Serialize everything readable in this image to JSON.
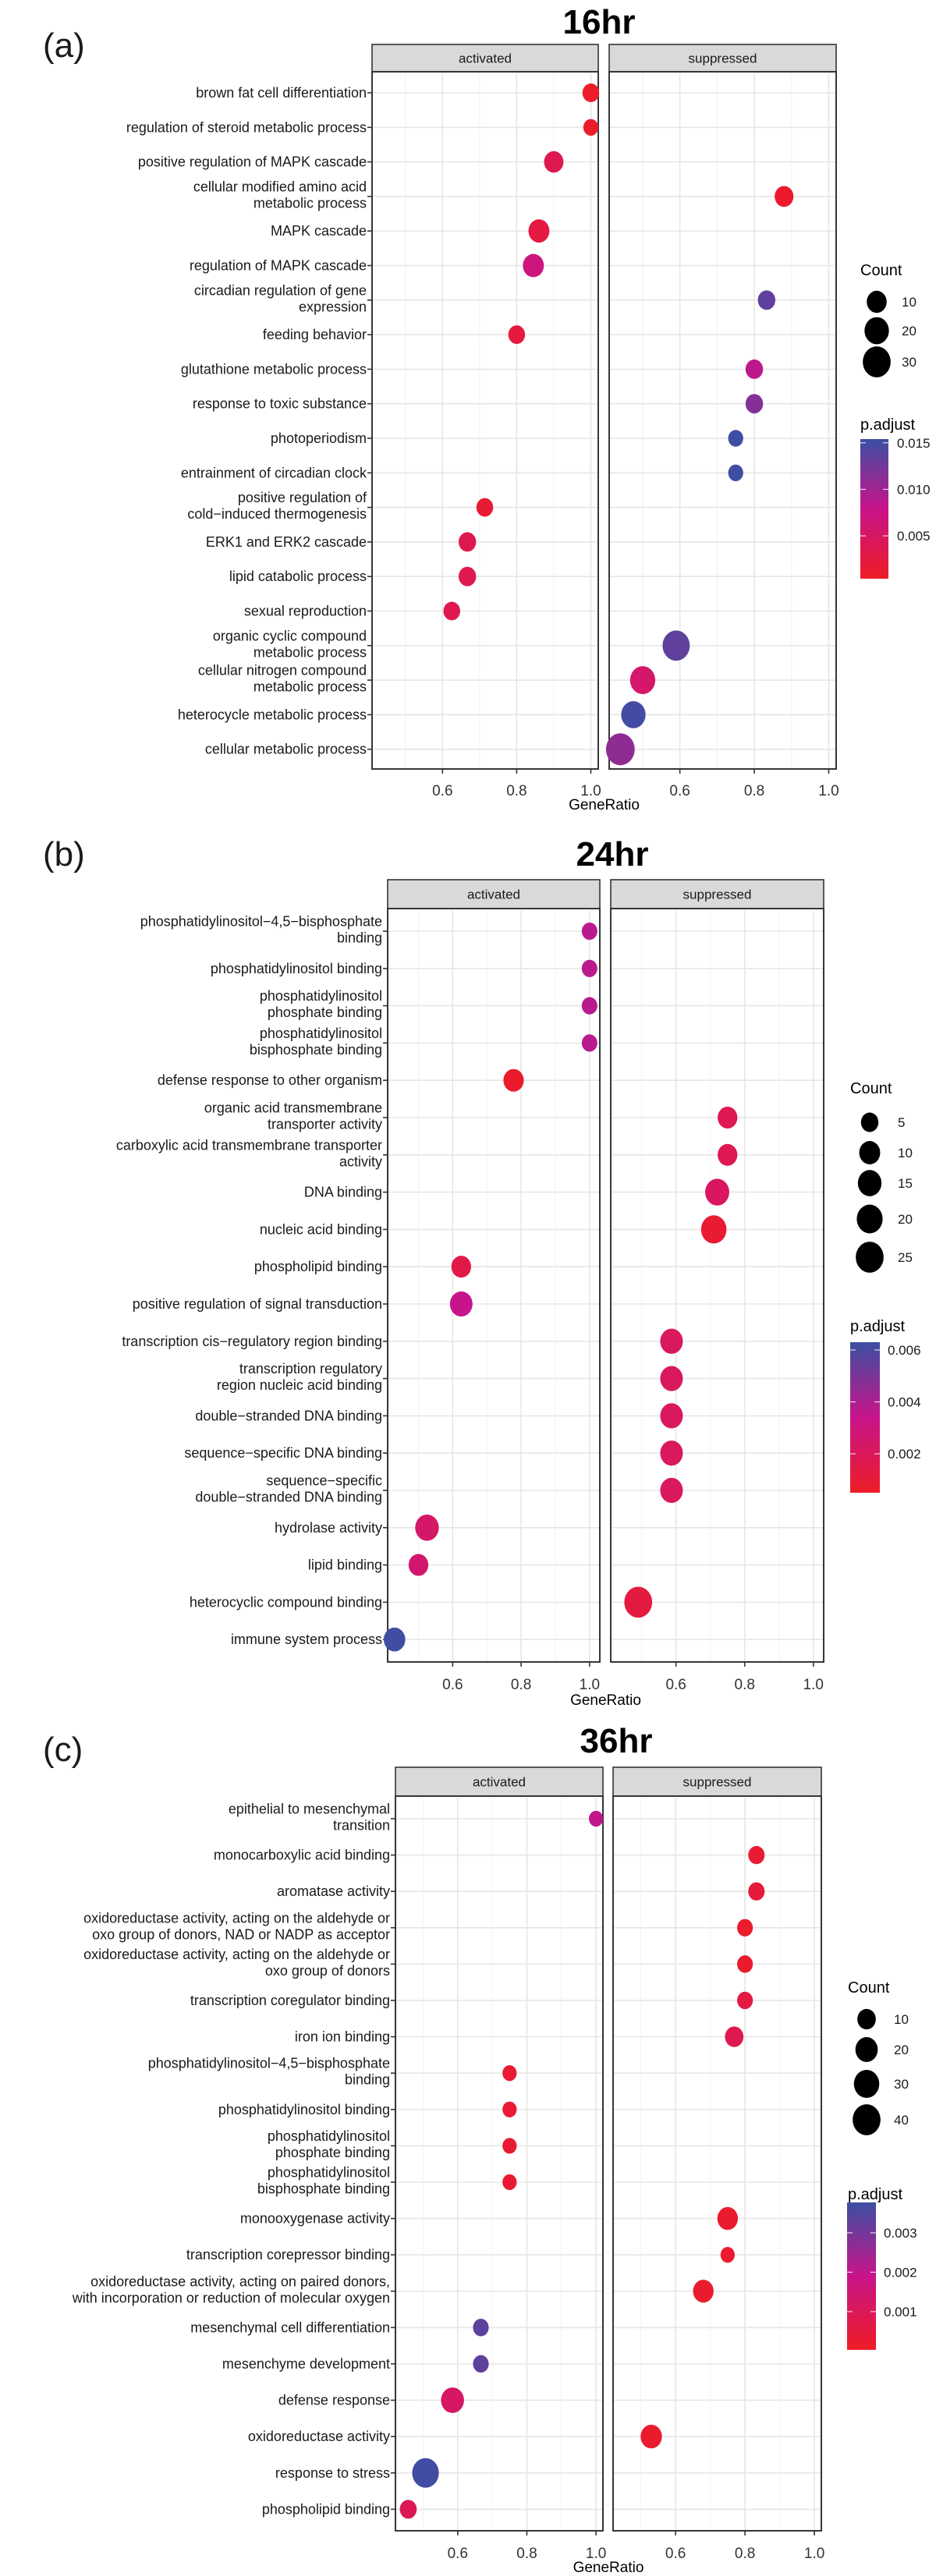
{
  "chart_data": [
    {
      "type": "scatter",
      "panel_letter": "(a)",
      "title": "16hr",
      "facets": [
        "activated",
        "suppressed"
      ],
      "xlabel": "GeneRatio",
      "ylabel": "",
      "xlim": [
        0.41,
        1.02
      ],
      "xticks": [
        0.6,
        0.8,
        1.0
      ],
      "xtick_labels": [
        "0.6",
        "0.8",
        "1.0"
      ],
      "grid": true,
      "legend_position": "right",
      "size_legend": {
        "title": "Count",
        "values": [
          10,
          20,
          30
        ],
        "labels": [
          "10",
          "20",
          "30"
        ]
      },
      "color_legend": {
        "title": "p.adjust",
        "range": [
          0.0004,
          0.0154
        ],
        "ticks": [
          0.015,
          0.01,
          0.005
        ],
        "labels": [
          "0.015",
          "0.010",
          "0.005"
        ],
        "low_color": "#ee1c25",
        "mid_color": "#c8148a",
        "high_color": "#3b4fa3"
      },
      "categories": [
        "brown fat cell differentiation",
        "regulation of steroid metabolic process",
        "positive regulation of MAPK cascade",
        "cellular modified amino acid\nmetabolic process",
        "MAPK cascade",
        "regulation of MAPK cascade",
        "circadian regulation of gene\nexpression",
        "feeding behavior",
        "glutathione metabolic process",
        "response to toxic substance",
        "photoperiodism",
        "entrainment of circadian clock",
        "positive regulation of\ncold−induced thermogenesis",
        "ERK1 and ERK2 cascade",
        "lipid catabolic process",
        "sexual reproduction",
        "organic cyclic compound\nmetabolic process",
        "cellular nitrogen compound\nmetabolic process",
        "heterocycle metabolic process",
        "cellular metabolic process"
      ],
      "points": [
        {
          "term": 0,
          "facet": "activated",
          "gene_ratio": 1.0,
          "count": 5,
          "p_adjust": 0.0008
        },
        {
          "term": 1,
          "facet": "activated",
          "gene_ratio": 1.0,
          "count": 3,
          "p_adjust": 0.0008
        },
        {
          "term": 2,
          "facet": "activated",
          "gene_ratio": 0.9,
          "count": 9,
          "p_adjust": 0.0035
        },
        {
          "term": 3,
          "facet": "suppressed",
          "gene_ratio": 0.88,
          "count": 8,
          "p_adjust": 0.001
        },
        {
          "term": 4,
          "facet": "activated",
          "gene_ratio": 0.86,
          "count": 12,
          "p_adjust": 0.0025
        },
        {
          "term": 5,
          "facet": "activated",
          "gene_ratio": 0.845,
          "count": 12,
          "p_adjust": 0.007
        },
        {
          "term": 6,
          "facet": "suppressed",
          "gene_ratio": 0.833,
          "count": 6,
          "p_adjust": 0.0135
        },
        {
          "term": 7,
          "facet": "activated",
          "gene_ratio": 0.8,
          "count": 5,
          "p_adjust": 0.0022
        },
        {
          "term": 8,
          "facet": "suppressed",
          "gene_ratio": 0.8,
          "count": 6,
          "p_adjust": 0.0085
        },
        {
          "term": 9,
          "facet": "suppressed",
          "gene_ratio": 0.8,
          "count": 6,
          "p_adjust": 0.0115
        },
        {
          "term": 10,
          "facet": "suppressed",
          "gene_ratio": 0.75,
          "count": 3,
          "p_adjust": 0.0152
        },
        {
          "term": 11,
          "facet": "suppressed",
          "gene_ratio": 0.75,
          "count": 3,
          "p_adjust": 0.0152
        },
        {
          "term": 12,
          "facet": "activated",
          "gene_ratio": 0.714,
          "count": 5,
          "p_adjust": 0.0015
        },
        {
          "term": 13,
          "facet": "activated",
          "gene_ratio": 0.667,
          "count": 6,
          "p_adjust": 0.0035
        },
        {
          "term": 14,
          "facet": "activated",
          "gene_ratio": 0.667,
          "count": 6,
          "p_adjust": 0.0035
        },
        {
          "term": 15,
          "facet": "activated",
          "gene_ratio": 0.625,
          "count": 5,
          "p_adjust": 0.0035
        },
        {
          "term": 16,
          "facet": "suppressed",
          "gene_ratio": 0.59,
          "count": 28,
          "p_adjust": 0.0135
        },
        {
          "term": 17,
          "facet": "suppressed",
          "gene_ratio": 0.5,
          "count": 22,
          "p_adjust": 0.0055
        },
        {
          "term": 18,
          "facet": "suppressed",
          "gene_ratio": 0.475,
          "count": 20,
          "p_adjust": 0.015
        },
        {
          "term": 19,
          "facet": "suppressed",
          "gene_ratio": 0.44,
          "count": 33,
          "p_adjust": 0.011
        }
      ]
    },
    {
      "type": "scatter",
      "panel_letter": "(b)",
      "title": "24hr",
      "facets": [
        "activated",
        "suppressed"
      ],
      "xlabel": "GeneRatio",
      "ylabel": "",
      "xlim": [
        0.41,
        1.03
      ],
      "xticks": [
        0.6,
        0.8,
        1.0
      ],
      "xtick_labels": [
        "0.6",
        "0.8",
        "1.0"
      ],
      "grid": true,
      "legend_position": "right",
      "size_legend": {
        "title": "Count",
        "values": [
          5,
          10,
          15,
          20,
          25
        ],
        "labels": [
          "5",
          "10",
          "15",
          "20",
          "25"
        ]
      },
      "color_legend": {
        "title": "p.adjust",
        "range": [
          0.0005,
          0.0063
        ],
        "ticks": [
          0.006,
          0.004,
          0.002
        ],
        "labels": [
          "0.006",
          "0.004",
          "0.002"
        ],
        "low_color": "#ee1c25",
        "mid_color": "#c8148a",
        "high_color": "#3b4fa3"
      },
      "categories": [
        "phosphatidylinositol−4,5−bisphosphate\nbinding",
        "phosphatidylinositol binding",
        "phosphatidylinositol\nphosphate binding",
        "phosphatidylinositol\nbisphosphate binding",
        "defense response to other organism",
        "organic acid transmembrane\ntransporter activity",
        "carboxylic acid  transmembrane transporter\nactivity",
        "DNA binding",
        "nucleic acid binding",
        "phospholipid binding",
        "positive regulation of signal transduction",
        "transcription cis−regulatory region binding",
        "transcription regulatory\nregion nucleic acid binding",
        "double−stranded DNA binding",
        "sequence−specific DNA binding",
        "sequence−specific\ndouble−stranded DNA binding",
        "hydrolase activity",
        "lipid binding",
        "heterocyclic compound binding",
        "immune system process"
      ],
      "points": [
        {
          "term": 0,
          "facet": "activated",
          "gene_ratio": 1.0,
          "count": 3,
          "p_adjust": 0.0037
        },
        {
          "term": 1,
          "facet": "activated",
          "gene_ratio": 1.0,
          "count": 3,
          "p_adjust": 0.0037
        },
        {
          "term": 2,
          "facet": "activated",
          "gene_ratio": 1.0,
          "count": 3,
          "p_adjust": 0.0037
        },
        {
          "term": 3,
          "facet": "activated",
          "gene_ratio": 1.0,
          "count": 3,
          "p_adjust": 0.0037
        },
        {
          "term": 4,
          "facet": "activated",
          "gene_ratio": 0.778,
          "count": 9,
          "p_adjust": 0.0007
        },
        {
          "term": 5,
          "facet": "suppressed",
          "gene_ratio": 0.75,
          "count": 8,
          "p_adjust": 0.0018
        },
        {
          "term": 6,
          "facet": "suppressed",
          "gene_ratio": 0.75,
          "count": 8,
          "p_adjust": 0.0018
        },
        {
          "term": 7,
          "facet": "suppressed",
          "gene_ratio": 0.72,
          "count": 16,
          "p_adjust": 0.0022
        },
        {
          "term": 8,
          "facet": "suppressed",
          "gene_ratio": 0.71,
          "count": 19,
          "p_adjust": 0.0009
        },
        {
          "term": 9,
          "facet": "activated",
          "gene_ratio": 0.625,
          "count": 8,
          "p_adjust": 0.0015
        },
        {
          "term": 10,
          "facet": "activated",
          "gene_ratio": 0.625,
          "count": 13,
          "p_adjust": 0.0034
        },
        {
          "term": 11,
          "facet": "suppressed",
          "gene_ratio": 0.587,
          "count": 13,
          "p_adjust": 0.0021
        },
        {
          "term": 12,
          "facet": "suppressed",
          "gene_ratio": 0.587,
          "count": 13,
          "p_adjust": 0.0021
        },
        {
          "term": 13,
          "facet": "suppressed",
          "gene_ratio": 0.587,
          "count": 13,
          "p_adjust": 0.0021
        },
        {
          "term": 14,
          "facet": "suppressed",
          "gene_ratio": 0.587,
          "count": 13,
          "p_adjust": 0.0021
        },
        {
          "term": 15,
          "facet": "suppressed",
          "gene_ratio": 0.587,
          "count": 13,
          "p_adjust": 0.0021
        },
        {
          "term": 16,
          "facet": "activated",
          "gene_ratio": 0.525,
          "count": 15,
          "p_adjust": 0.0024
        },
        {
          "term": 17,
          "facet": "activated",
          "gene_ratio": 0.5,
          "count": 8,
          "p_adjust": 0.0026
        },
        {
          "term": 18,
          "facet": "suppressed",
          "gene_ratio": 0.49,
          "count": 25,
          "p_adjust": 0.0013
        },
        {
          "term": 19,
          "facet": "activated",
          "gene_ratio": 0.43,
          "count": 11,
          "p_adjust": 0.0062
        }
      ]
    },
    {
      "type": "scatter",
      "panel_letter": "(c)",
      "title": "36hr",
      "facets": [
        "activated",
        "suppressed"
      ],
      "xlabel": "GeneRatio",
      "ylabel": "",
      "xlim": [
        0.42,
        1.02
      ],
      "xticks": [
        0.6,
        0.8,
        1.0
      ],
      "xtick_labels": [
        "0.6",
        "0.8",
        "1.0"
      ],
      "grid": true,
      "legend_position": "right",
      "size_legend": {
        "title": "Count",
        "values": [
          10,
          20,
          30,
          40
        ],
        "labels": [
          "10",
          "20",
          "30",
          "40"
        ]
      },
      "color_legend": {
        "title": "p.adjust",
        "range": [
          3e-05,
          0.00377
        ],
        "ticks": [
          0.003,
          0.002,
          0.001
        ],
        "labels": [
          "0.003",
          "0.002",
          "0.001"
        ],
        "low_color": "#ee1c25",
        "mid_color": "#c8148a",
        "high_color": "#3b4fa3"
      },
      "categories": [
        "epithelial to mesenchymal\ntransition",
        "monocarboxylic acid binding",
        "aromatase activity",
        "oxidoreductase activity, acting on the aldehyde or\noxo group of donors, NAD or  NADP as acceptor",
        "oxidoreductase activity, acting on the aldehyde or\noxo group of donors",
        "transcription coregulator binding",
        "iron ion binding",
        "phosphatidylinositol−4,5−bisphosphate\nbinding",
        "phosphatidylinositol binding",
        "phosphatidylinositol\nphosphate binding",
        "phosphatidylinositol\nbisphosphate binding",
        "monooxygenase activity",
        "transcription corepressor binding",
        "oxidoreductase activity, acting on paired donors,\nwith incorporation or reduction of molecular oxygen",
        "mesenchymal cell differentiation",
        "mesenchyme development",
        "defense response",
        "oxidoreductase activity",
        "response to stress",
        "phospholipid binding"
      ],
      "points": [
        {
          "term": 0,
          "facet": "activated",
          "gene_ratio": 1.0,
          "count": 3,
          "p_adjust": 0.002
        },
        {
          "term": 1,
          "facet": "suppressed",
          "gene_ratio": 0.833,
          "count": 6,
          "p_adjust": 0.0003
        },
        {
          "term": 2,
          "facet": "suppressed",
          "gene_ratio": 0.833,
          "count": 6,
          "p_adjust": 0.0004
        },
        {
          "term": 3,
          "facet": "suppressed",
          "gene_ratio": 0.8,
          "count": 5,
          "p_adjust": 0.0002
        },
        {
          "term": 4,
          "facet": "suppressed",
          "gene_ratio": 0.8,
          "count": 5,
          "p_adjust": 0.0002
        },
        {
          "term": 5,
          "facet": "suppressed",
          "gene_ratio": 0.8,
          "count": 5,
          "p_adjust": 0.0006
        },
        {
          "term": 6,
          "facet": "suppressed",
          "gene_ratio": 0.769,
          "count": 10,
          "p_adjust": 0.0008
        },
        {
          "term": 7,
          "facet": "activated",
          "gene_ratio": 0.75,
          "count": 3,
          "p_adjust": 0.0003
        },
        {
          "term": 8,
          "facet": "activated",
          "gene_ratio": 0.75,
          "count": 3,
          "p_adjust": 0.0003
        },
        {
          "term": 9,
          "facet": "activated",
          "gene_ratio": 0.75,
          "count": 3,
          "p_adjust": 0.0003
        },
        {
          "term": 10,
          "facet": "activated",
          "gene_ratio": 0.75,
          "count": 3,
          "p_adjust": 0.0003
        },
        {
          "term": 11,
          "facet": "suppressed",
          "gene_ratio": 0.75,
          "count": 15,
          "p_adjust": 0.0002
        },
        {
          "term": 12,
          "facet": "suppressed",
          "gene_ratio": 0.75,
          "count": 3,
          "p_adjust": 0.0002
        },
        {
          "term": 13,
          "facet": "suppressed",
          "gene_ratio": 0.68,
          "count": 15,
          "p_adjust": 0.0002
        },
        {
          "term": 14,
          "facet": "activated",
          "gene_ratio": 0.667,
          "count": 5,
          "p_adjust": 0.0033
        },
        {
          "term": 15,
          "facet": "activated",
          "gene_ratio": 0.667,
          "count": 5,
          "p_adjust": 0.0033
        },
        {
          "term": 16,
          "facet": "activated",
          "gene_ratio": 0.585,
          "count": 22,
          "p_adjust": 0.0012
        },
        {
          "term": 17,
          "facet": "suppressed",
          "gene_ratio": 0.53,
          "count": 17,
          "p_adjust": 0.0002
        },
        {
          "term": 18,
          "facet": "activated",
          "gene_ratio": 0.507,
          "count": 35,
          "p_adjust": 0.0037
        },
        {
          "term": 19,
          "facet": "activated",
          "gene_ratio": 0.457,
          "count": 7,
          "p_adjust": 0.0009
        }
      ]
    }
  ]
}
